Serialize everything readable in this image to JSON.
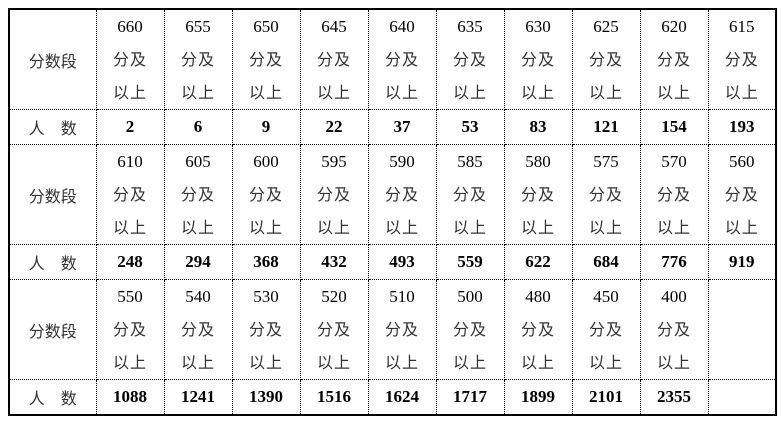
{
  "labels": {
    "segment": "分数段",
    "count": "人　数",
    "suffix1": "分及",
    "suffix2": "以上"
  },
  "blocks": [
    {
      "scores": [
        "660",
        "655",
        "650",
        "645",
        "640",
        "635",
        "630",
        "625",
        "620",
        "615"
      ],
      "counts": [
        "2",
        "6",
        "9",
        "22",
        "37",
        "53",
        "83",
        "121",
        "154",
        "193"
      ]
    },
    {
      "scores": [
        "610",
        "605",
        "600",
        "595",
        "590",
        "585",
        "580",
        "575",
        "570",
        "560"
      ],
      "counts": [
        "248",
        "294",
        "368",
        "432",
        "493",
        "559",
        "622",
        "684",
        "776",
        "919"
      ]
    },
    {
      "scores": [
        "550",
        "540",
        "530",
        "520",
        "510",
        "500",
        "480",
        "450",
        "400"
      ],
      "counts": [
        "1088",
        "1241",
        "1390",
        "1516",
        "1624",
        "1717",
        "1899",
        "2101",
        "2355"
      ]
    }
  ]
}
